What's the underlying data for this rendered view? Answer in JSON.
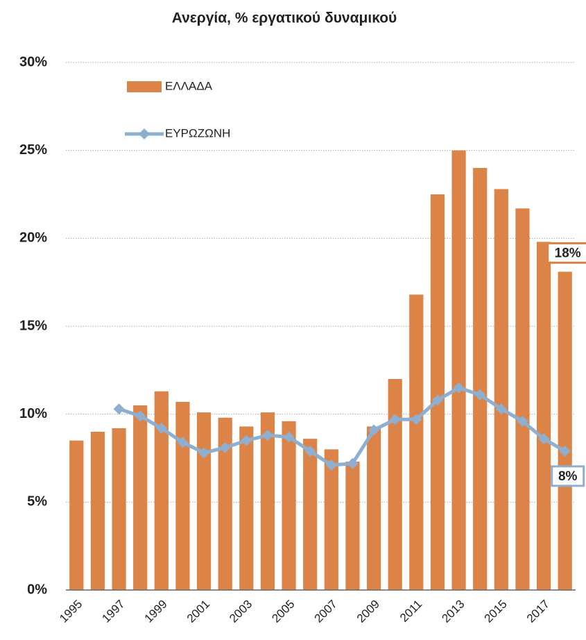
{
  "chart_data": {
    "type": "bar-line",
    "title": "Ανεργία, % εργατικού δυναμικού",
    "categories": [
      "1995",
      null,
      "1997",
      null,
      "1999",
      null,
      "2001",
      null,
      "2003",
      null,
      "2005",
      null,
      "2007",
      null,
      "2009",
      null,
      "2011",
      null,
      "2013",
      null,
      "2015",
      null,
      "2017",
      null
    ],
    "series": [
      {
        "name": "ΕΛΛΑΔΑ",
        "type": "bar",
        "color": "#dc8447",
        "values": [
          8.5,
          9.0,
          9.2,
          10.5,
          11.3,
          10.7,
          10.1,
          9.8,
          9.3,
          10.1,
          9.6,
          8.6,
          8.0,
          7.3,
          9.3,
          12.0,
          16.8,
          22.5,
          25.0,
          24.0,
          22.8,
          21.7,
          19.8,
          18.1
        ],
        "value_labels": [
          null,
          null,
          null,
          null,
          null,
          null,
          null,
          null,
          null,
          null,
          null,
          null,
          null,
          null,
          null,
          null,
          null,
          null,
          null,
          null,
          null,
          null,
          null,
          "18%"
        ]
      },
      {
        "name": "ΕΥΡΩΖΩΝΗ",
        "type": "line",
        "color": "#8eafd0",
        "values": [
          null,
          null,
          10.3,
          9.9,
          9.2,
          8.4,
          7.8,
          8.1,
          8.5,
          8.8,
          8.7,
          7.9,
          7.1,
          7.2,
          9.1,
          9.7,
          9.7,
          10.8,
          11.5,
          11.1,
          10.3,
          9.6,
          8.6,
          7.9
        ],
        "value_labels": [
          null,
          null,
          null,
          null,
          null,
          null,
          null,
          null,
          null,
          null,
          null,
          null,
          null,
          null,
          null,
          null,
          null,
          null,
          null,
          null,
          null,
          null,
          null,
          "8%"
        ]
      }
    ],
    "ylim": [
      0,
      30
    ],
    "yticks": [
      {
        "value": 0,
        "label": "0%"
      },
      {
        "value": 5,
        "label": "5%"
      },
      {
        "value": 10,
        "label": "10%"
      },
      {
        "value": 15,
        "label": "15%"
      },
      {
        "value": 20,
        "label": "20%"
      },
      {
        "value": 25,
        "label": "25%"
      },
      {
        "value": 30,
        "label": "30%"
      }
    ],
    "grid": true,
    "legend": "upper left"
  }
}
